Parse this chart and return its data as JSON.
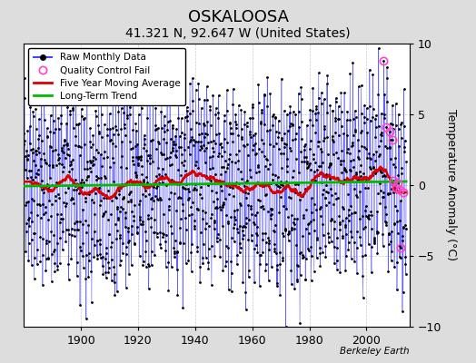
{
  "title": "OSKALOOSA",
  "subtitle": "41.321 N, 92.647 W (United States)",
  "credit": "Berkeley Earth",
  "ylabel": "Temperature Anomaly (°C)",
  "xlim": [
    1880,
    2015
  ],
  "ylim": [
    -10,
    10
  ],
  "yticks": [
    -10,
    -5,
    0,
    5,
    10
  ],
  "xticks": [
    1900,
    1920,
    1940,
    1960,
    1980,
    2000
  ],
  "x_start": 1880.0,
  "x_end": 2013.9,
  "n_months": 1608,
  "seed": 42,
  "raw_color": "#4444ff",
  "dot_color": "#000000",
  "ma_color": "#dd0000",
  "trend_color": "#00bb00",
  "qc_color": "#ff44cc",
  "background": "#dddddd",
  "plot_background": "#ffffff",
  "grid_color": "#bbbbbb",
  "legend_labels": [
    "Raw Monthly Data",
    "Quality Control Fail",
    "Five Year Moving Average",
    "Long-Term Trend"
  ],
  "title_fontsize": 13,
  "subtitle_fontsize": 10,
  "ylabel_fontsize": 9,
  "tick_fontsize": 9,
  "qc_indices": [
    1512,
    1524,
    1536,
    1548,
    1554,
    1566,
    1572,
    1578,
    1584,
    1596
  ],
  "qc_values": [
    8.8,
    4.1,
    3.8,
    3.2,
    0.3,
    -0.2,
    0.1,
    -0.3,
    -4.4,
    -0.5
  ]
}
